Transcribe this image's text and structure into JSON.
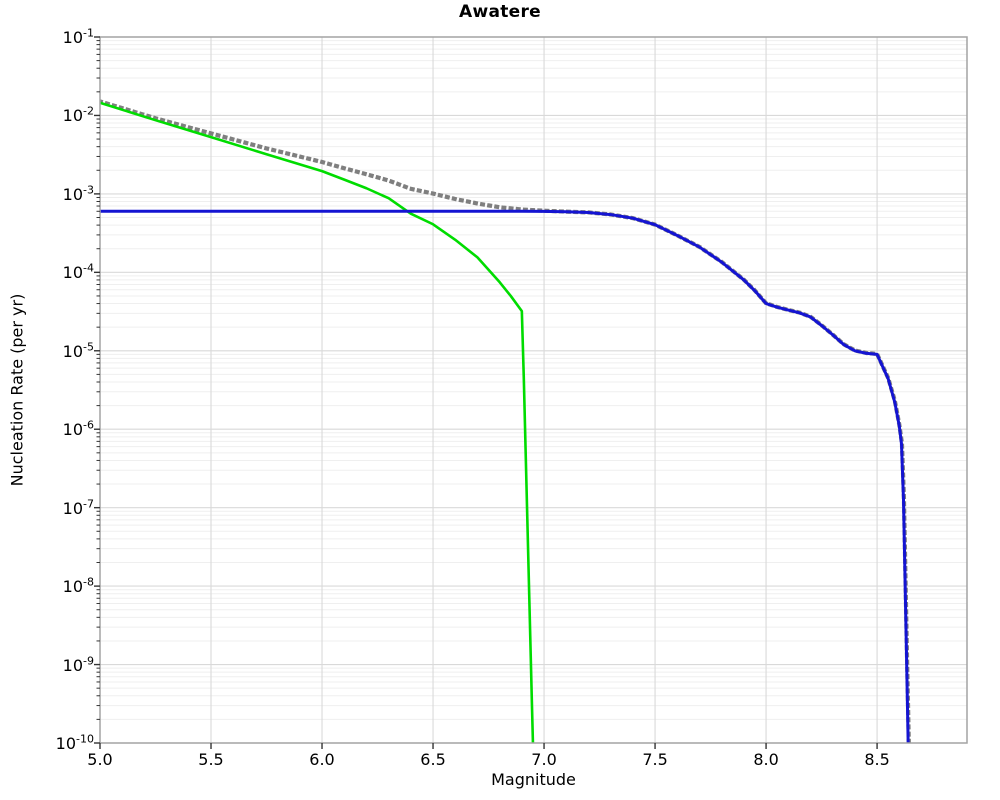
{
  "title": "Awatere",
  "x_axis": {
    "label": "Magnitude",
    "tick_values": [
      5.0,
      5.5,
      6.0,
      6.5,
      7.0,
      7.5,
      8.0,
      8.5
    ],
    "tick_labels": [
      "5.0",
      "5.5",
      "6.0",
      "6.5",
      "7.0",
      "7.5",
      "8.0",
      "8.5"
    ]
  },
  "y_axis": {
    "label": "Nucleation Rate (per yr)",
    "tick_base": "10",
    "tick_exponents": [
      "-1",
      "-2",
      "-3",
      "-4",
      "-5",
      "-6",
      "-7",
      "-8",
      "-9",
      "-10"
    ]
  },
  "chart_data": {
    "type": "line",
    "title": "Awatere",
    "xlabel": "Magnitude",
    "ylabel": "Nucleation Rate (per yr)",
    "xlim": [
      5.0,
      8.905
    ],
    "ylim": [
      1e-10,
      0.1
    ],
    "x_scale": "linear",
    "y_scale": "log",
    "grid": "major and minor log gridlines, light gray",
    "legend": "none",
    "colors": {
      "grid_major": "#d9d9d9",
      "grid_minor": "#efefef",
      "axis_border": "#a3a3a3",
      "tick_mark": "#333333"
    },
    "series": [
      {
        "name": "gray-dotted-total-rate",
        "color": "#7f7f7f",
        "style": "dotted",
        "width": 4.2,
        "points": [
          [
            5.0,
            0.0151
          ],
          [
            5.25,
            0.0092
          ],
          [
            5.5,
            0.0059
          ],
          [
            5.75,
            0.0038
          ],
          [
            6.0,
            0.00255
          ],
          [
            6.1,
            0.00212
          ],
          [
            6.2,
            0.00178
          ],
          [
            6.3,
            0.00148
          ],
          [
            6.4,
            0.00116
          ],
          [
            6.5,
            0.00101
          ],
          [
            6.6,
            0.00086
          ],
          [
            6.7,
            0.000755
          ],
          [
            6.8,
            0.000675
          ],
          [
            6.9,
            0.000632
          ],
          [
            7.0,
            0.00061
          ],
          [
            7.1,
            0.000594
          ],
          [
            7.2,
            0.000581
          ],
          [
            7.3,
            0.000546
          ],
          [
            7.4,
            0.000491
          ],
          [
            7.5,
            0.000406
          ],
          [
            7.6,
            0.000296
          ],
          [
            7.7,
            0.000211
          ],
          [
            7.8,
            0.000136
          ],
          [
            7.9,
            8.05e-05
          ],
          [
            7.95,
            5.85e-05
          ],
          [
            8.0,
            4.03e-05
          ],
          [
            8.05,
            3.62e-05
          ],
          [
            8.1,
            3.32e-05
          ],
          [
            8.15,
            3.07e-05
          ],
          [
            8.2,
            2.72e-05
          ],
          [
            8.25,
            2.12e-05
          ],
          [
            8.3,
            1.61e-05
          ],
          [
            8.35,
            1.21e-05
          ],
          [
            8.4,
            1.01e-05
          ],
          [
            8.45,
            9.4e-06
          ],
          [
            8.5,
            9.1e-06
          ],
          [
            8.55,
            4.5e-06
          ],
          [
            8.58,
            2.3e-06
          ],
          [
            8.6,
            1.15e-06
          ],
          [
            8.612,
            6.6e-07
          ],
          [
            8.621,
            1.3e-07
          ],
          [
            8.628,
            1.25e-08
          ],
          [
            8.635,
            1.2e-09
          ],
          [
            8.643,
            1e-10
          ]
        ]
      },
      {
        "name": "green-gutenberg-richter-rate",
        "color": "#00dc00",
        "style": "solid",
        "width": 2.6,
        "points": [
          [
            5.0,
            0.0145
          ],
          [
            5.25,
            0.0087
          ],
          [
            5.5,
            0.0053
          ],
          [
            5.75,
            0.0032
          ],
          [
            6.0,
            0.00195
          ],
          [
            6.1,
            0.00152
          ],
          [
            6.2,
            0.00118
          ],
          [
            6.3,
            0.00088
          ],
          [
            6.4,
            0.00056
          ],
          [
            6.5,
            0.00041
          ],
          [
            6.6,
            0.00026
          ],
          [
            6.7,
            0.000155
          ],
          [
            6.8,
            7.5e-05
          ],
          [
            6.85,
            5e-05
          ],
          [
            6.9,
            3.2e-05
          ],
          [
            6.909,
            4.3e-06
          ],
          [
            6.918,
            4.1e-07
          ],
          [
            6.927,
            3.9e-08
          ],
          [
            6.936,
            3.7e-09
          ],
          [
            6.945,
            3.5e-10
          ],
          [
            6.95,
            1e-10
          ]
        ]
      },
      {
        "name": "blue-inversion-rate",
        "color": "#1414d2",
        "style": "solid",
        "width": 3.0,
        "points": [
          [
            5.0,
            0.0006
          ],
          [
            5.5,
            0.0006
          ],
          [
            6.0,
            0.0006
          ],
          [
            6.5,
            0.0006
          ],
          [
            6.9,
            0.0006
          ],
          [
            7.0,
            0.000598
          ],
          [
            7.1,
            0.000592
          ],
          [
            7.2,
            0.00058
          ],
          [
            7.3,
            0.000545
          ],
          [
            7.4,
            0.00049
          ],
          [
            7.5,
            0.000405
          ],
          [
            7.6,
            0.000295
          ],
          [
            7.7,
            0.00021
          ],
          [
            7.8,
            0.000135
          ],
          [
            7.9,
            8e-05
          ],
          [
            7.95,
            5.8e-05
          ],
          [
            8.0,
            4e-05
          ],
          [
            8.05,
            3.6e-05
          ],
          [
            8.1,
            3.3e-05
          ],
          [
            8.15,
            3.05e-05
          ],
          [
            8.2,
            2.7e-05
          ],
          [
            8.25,
            2.1e-05
          ],
          [
            8.3,
            1.6e-05
          ],
          [
            8.35,
            1.2e-05
          ],
          [
            8.4,
            1e-05
          ],
          [
            8.45,
            9.3e-06
          ],
          [
            8.5,
            9e-06
          ],
          [
            8.55,
            4.4e-06
          ],
          [
            8.58,
            2.2e-06
          ],
          [
            8.6,
            1.1e-06
          ],
          [
            8.61,
            6.5e-07
          ],
          [
            8.619,
            1.26e-07
          ],
          [
            8.626,
            1.2e-08
          ],
          [
            8.633,
            1.15e-09
          ],
          [
            8.64,
            1e-10
          ]
        ]
      }
    ]
  }
}
